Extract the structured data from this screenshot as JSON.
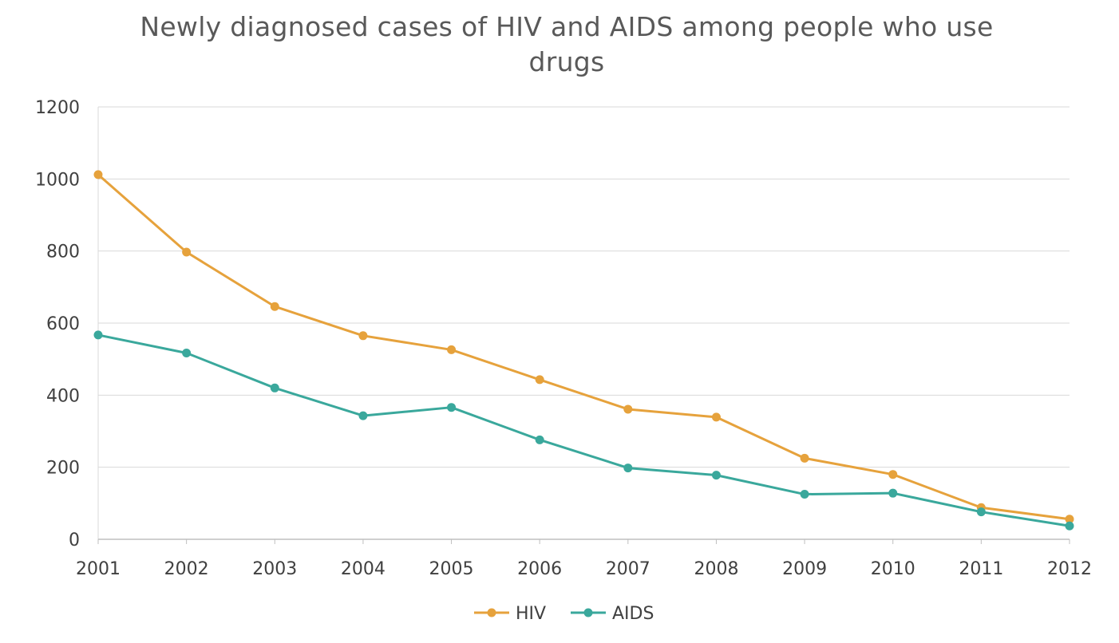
{
  "chart_data": {
    "type": "line",
    "title": "Newly diagnosed cases of HIV and AIDS among people who use drugs",
    "xlabel": "",
    "ylabel": "",
    "categories": [
      "2001",
      "2002",
      "2003",
      "2004",
      "2005",
      "2006",
      "2007",
      "2008",
      "2009",
      "2010",
      "2011",
      "2012"
    ],
    "ylim": [
      0,
      1200
    ],
    "yticks": [
      0,
      200,
      400,
      600,
      800,
      1000,
      1200
    ],
    "grid": true,
    "legend_position": "bottom",
    "series": [
      {
        "name": "HIV",
        "color": "#E6A23C",
        "values": [
          1012,
          797,
          646,
          565,
          526,
          443,
          361,
          339,
          225,
          180,
          88,
          56
        ]
      },
      {
        "name": "AIDS",
        "color": "#3AA89C",
        "values": [
          567,
          517,
          420,
          343,
          366,
          276,
          198,
          178,
          125,
          128,
          76,
          37
        ]
      }
    ]
  }
}
